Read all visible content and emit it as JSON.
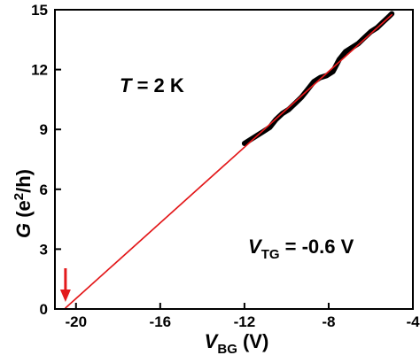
{
  "chart_data": {
    "type": "line",
    "xlabel": {
      "main": "V",
      "sub": "BG",
      "unit": " (V)"
    },
    "ylabel": {
      "main": "G",
      "unit": " (e",
      "sup": "2",
      "tail": "/h)"
    },
    "xlim": [
      -21,
      -4
    ],
    "ylim": [
      0,
      15
    ],
    "xticks": [
      -20,
      -16,
      -12,
      -8,
      -4
    ],
    "yticks": [
      0,
      3,
      6,
      9,
      12,
      15
    ],
    "xtick_labels": [
      "-20",
      "-16",
      "-12",
      "-8",
      "-4"
    ],
    "ytick_labels": [
      "0",
      "3",
      "6",
      "9",
      "12",
      "15"
    ],
    "grid": false,
    "annotations": {
      "temperature": {
        "italic": "T",
        "text": " = 2 K"
      },
      "gate_voltage": {
        "main": "V",
        "sub": "TG",
        "text": " = -0.6 V"
      }
    },
    "series": [
      {
        "style": "measured",
        "color": "#000000",
        "x": [
          -12.0,
          -11.7,
          -11.4,
          -11.1,
          -10.8,
          -10.5,
          -10.2,
          -9.9,
          -9.6,
          -9.3,
          -9.0,
          -8.7,
          -8.4,
          -8.1,
          -7.8,
          -7.5,
          -7.2,
          -6.9,
          -6.6,
          -6.3,
          -6.0,
          -5.7,
          -5.4,
          -5.1,
          -5.0
        ],
        "y": [
          8.3,
          8.5,
          8.7,
          8.9,
          9.1,
          9.5,
          9.8,
          10.0,
          10.3,
          10.6,
          11.0,
          11.4,
          11.6,
          11.7,
          11.9,
          12.5,
          12.9,
          13.1,
          13.3,
          13.6,
          13.9,
          14.1,
          14.4,
          14.7,
          14.8
        ]
      },
      {
        "style": "linear-fit",
        "color": "#e31a1c",
        "x": [
          -20.5,
          -5.0
        ],
        "y": [
          0.05,
          14.75
        ]
      }
    ],
    "arrow": {
      "x": -20.5,
      "color": "#e31a1c"
    }
  }
}
